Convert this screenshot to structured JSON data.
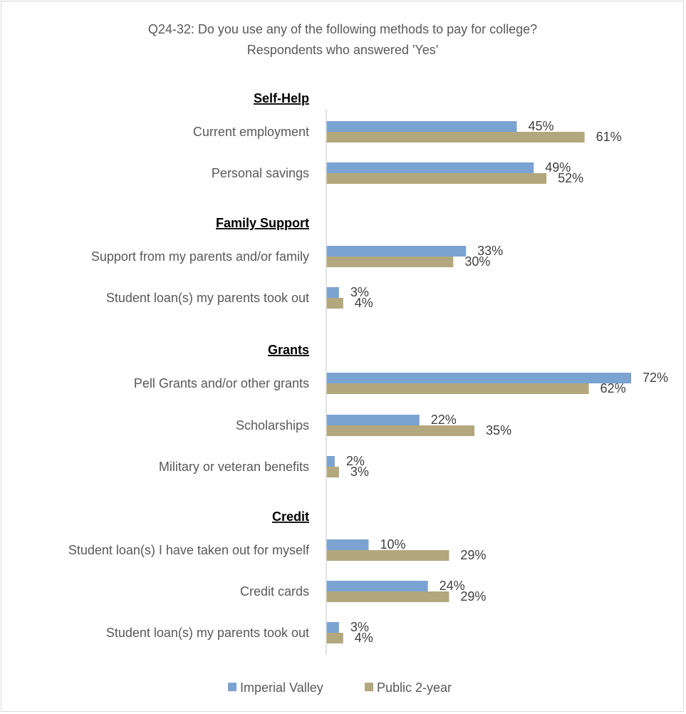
{
  "chart_data": {
    "type": "bar",
    "orientation": "horizontal",
    "title": "Q24-32: Do you use any of the following methods to pay for college?",
    "subtitle": "Respondents who answered 'Yes'",
    "unit": "%",
    "xlim": [
      0,
      72
    ],
    "grid": false,
    "legend_position": "bottom",
    "series": [
      {
        "name": "Imperial Valley",
        "color": "#7ba3d1"
      },
      {
        "name": "Public 2-year",
        "color": "#b3a77d"
      }
    ],
    "groups": [
      {
        "label": "Self-Help",
        "items": [
          {
            "label": "Current employment",
            "values": [
              45,
              61
            ]
          },
          {
            "label": "Personal savings",
            "values": [
              49,
              52
            ]
          }
        ]
      },
      {
        "label": "Family Support",
        "items": [
          {
            "label": "Support from my parents and/or family",
            "values": [
              33,
              30
            ]
          },
          {
            "label": "Student loan(s) my parents took out",
            "values": [
              3,
              4
            ]
          }
        ]
      },
      {
        "label": "Grants",
        "items": [
          {
            "label": "Pell Grants and/or other grants",
            "values": [
              72,
              62
            ]
          },
          {
            "label": "Scholarships",
            "values": [
              22,
              35
            ]
          },
          {
            "label": "Military or veteran benefits",
            "values": [
              2,
              3
            ]
          }
        ]
      },
      {
        "label": "Credit",
        "items": [
          {
            "label": "Student loan(s) I have taken out for myself",
            "values": [
              10,
              29
            ]
          },
          {
            "label": "Credit cards",
            "values": [
              24,
              29
            ]
          },
          {
            "label": "Student loan(s) my parents took out",
            "values": [
              3,
              4
            ]
          }
        ]
      }
    ]
  }
}
